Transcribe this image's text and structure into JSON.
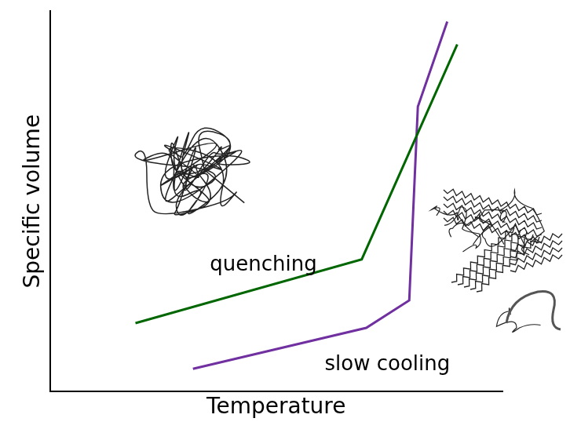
{
  "chart_data": {
    "type": "line",
    "x_label": "Temperature",
    "y_label": "Specific volume",
    "xlim": [
      0,
      100
    ],
    "ylim": [
      0,
      105
    ],
    "tick_labels": false,
    "grid": false,
    "series": [
      {
        "name": "quenching",
        "color": "#006600",
        "x": [
          18.9,
          68.9,
          90.0
        ],
        "values": [
          18.9,
          36.5,
          95.8
        ]
      },
      {
        "name": "slow cooling",
        "color": "#7030a0",
        "x": [
          31.6,
          69.9,
          79.4,
          81.3,
          87.8
        ],
        "values": [
          6.3,
          17.6,
          25.2,
          78.6,
          102.1
        ]
      }
    ]
  }
}
